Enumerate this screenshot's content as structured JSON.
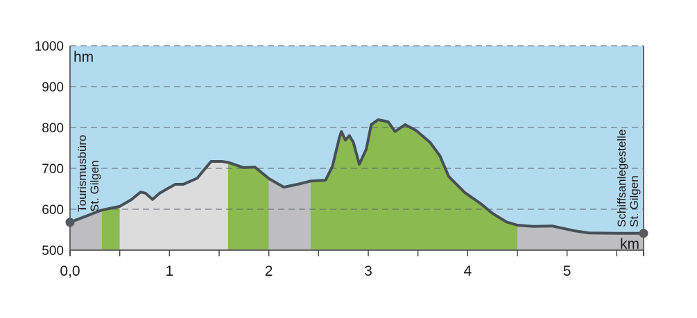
{
  "chart_data": {
    "type": "area",
    "ylabel": "hm",
    "xlabel": "km",
    "xlim": [
      0,
      5.77
    ],
    "ylim": [
      500,
      1000
    ],
    "x_ticks": [
      0,
      0.5,
      1,
      1.5,
      2,
      2.5,
      3,
      3.5,
      4,
      4.5,
      5,
      5.5,
      5.77
    ],
    "x_tick_labels": [
      {
        "value": 0,
        "label": "0,0"
      },
      {
        "value": 1,
        "label": "1"
      },
      {
        "value": 2,
        "label": "2"
      },
      {
        "value": 3,
        "label": "3"
      },
      {
        "value": 4,
        "label": "4"
      },
      {
        "value": 5,
        "label": "5"
      }
    ],
    "y_ticks": [
      500,
      600,
      700,
      800,
      900,
      1000
    ],
    "y_tick_labels": [
      "500",
      "600",
      "700",
      "800",
      "900",
      "1000"
    ],
    "grid": "horizontal dashed",
    "colors": {
      "sky": "#b3dbf0",
      "green": "#8bba50",
      "light_gray": "#dcdcdd",
      "dark_gray": "#bebec1",
      "line": "#465056",
      "grid": "#5a6670"
    },
    "surface_segments": [
      {
        "from": 0,
        "to": 0.32,
        "color": "dark_gray"
      },
      {
        "from": 0.32,
        "to": 0.5,
        "color": "green"
      },
      {
        "from": 0.5,
        "to": 1.59,
        "color": "light_gray"
      },
      {
        "from": 1.59,
        "to": 2.0,
        "color": "green"
      },
      {
        "from": 2.0,
        "to": 2.42,
        "color": "dark_gray"
      },
      {
        "from": 2.42,
        "to": 4.5,
        "color": "green"
      },
      {
        "from": 4.5,
        "to": 5.77,
        "color": "dark_gray"
      }
    ],
    "profile": [
      [
        0,
        568
      ],
      [
        0.32,
        598
      ],
      [
        0.5,
        607
      ],
      [
        0.62,
        624
      ],
      [
        0.71,
        642
      ],
      [
        0.76,
        639
      ],
      [
        0.83,
        624
      ],
      [
        0.9,
        639
      ],
      [
        0.97,
        649
      ],
      [
        1.06,
        661
      ],
      [
        1.14,
        661
      ],
      [
        1.28,
        676
      ],
      [
        1.35,
        697
      ],
      [
        1.42,
        717
      ],
      [
        1.53,
        717
      ],
      [
        1.6,
        714
      ],
      [
        1.74,
        702
      ],
      [
        1.86,
        703
      ],
      [
        2.0,
        675
      ],
      [
        2.15,
        654
      ],
      [
        2.29,
        661
      ],
      [
        2.42,
        669
      ],
      [
        2.57,
        671
      ],
      [
        2.64,
        705
      ],
      [
        2.71,
        776
      ],
      [
        2.73,
        790
      ],
      [
        2.77,
        769
      ],
      [
        2.81,
        780
      ],
      [
        2.85,
        764
      ],
      [
        2.91,
        710
      ],
      [
        2.98,
        747
      ],
      [
        3.03,
        807
      ],
      [
        3.1,
        819
      ],
      [
        3.2,
        814
      ],
      [
        3.27,
        790
      ],
      [
        3.37,
        807
      ],
      [
        3.48,
        793
      ],
      [
        3.62,
        764
      ],
      [
        3.72,
        731
      ],
      [
        3.81,
        680
      ],
      [
        3.97,
        641
      ],
      [
        4.14,
        612
      ],
      [
        4.25,
        590
      ],
      [
        4.39,
        569
      ],
      [
        4.5,
        561
      ],
      [
        4.66,
        558
      ],
      [
        4.85,
        559
      ],
      [
        5.08,
        547
      ],
      [
        5.22,
        542
      ],
      [
        5.57,
        541
      ],
      [
        5.77,
        541
      ]
    ],
    "annotations": [
      {
        "at": "start",
        "lines": [
          "Tourismusbüro",
          "St. Gilgen"
        ]
      },
      {
        "at": "end",
        "lines": [
          "Schiffsanlegestelle",
          "St. Gilgen"
        ]
      }
    ]
  }
}
